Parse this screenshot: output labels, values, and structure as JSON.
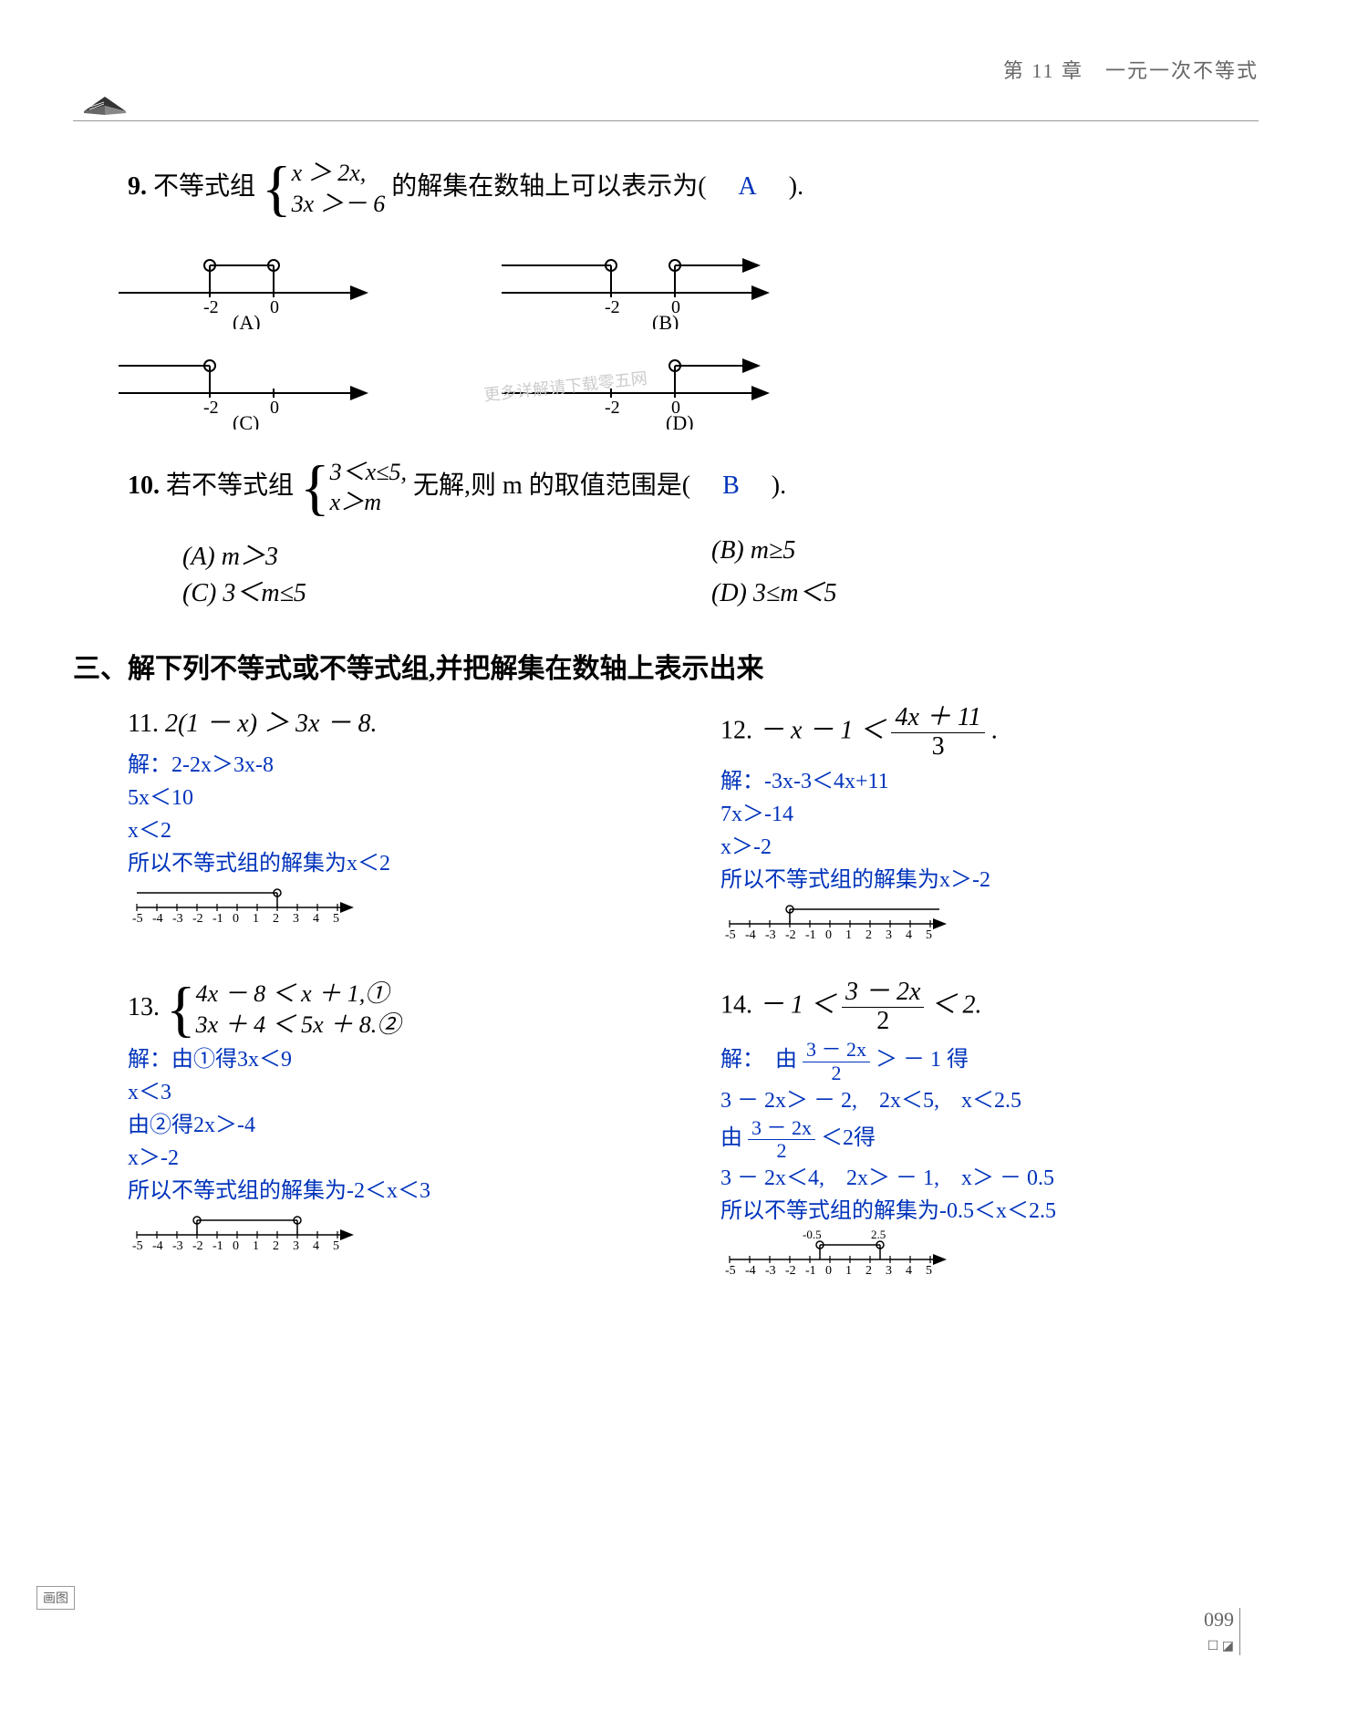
{
  "header": {
    "chapter": "第 11 章　一元一次不等式"
  },
  "q9": {
    "num": "9.",
    "lead": "不等式组",
    "br1": "x ＞ 2x,",
    "br2": "3x ＞－ 6",
    "tail": "的解集在数轴上可以表示为(　",
    "ans": "A",
    "tail2": "　).",
    "labels": {
      "a": "(A)",
      "b": "(B)",
      "c": "(C)",
      "d": "(D)"
    },
    "ticks": {
      "n2": "-2",
      "z": "0"
    }
  },
  "q10": {
    "num": "10.",
    "lead": "若不等式组",
    "br1": "3＜x≤5,",
    "br2": "x＞m",
    "tail": "无解,则 m 的取值范围是(　",
    "ans": "B",
    "tail2": "　).",
    "optA": "(A)  m＞3",
    "optB": "(B)  m≥5",
    "optC": "(C)  3＜m≤5",
    "optD": "(D)  3≤m＜5"
  },
  "section3": "三、解下列不等式或不等式组,并把解集在数轴上表示出来",
  "q11": {
    "num": "11.",
    "question": "2(1 － x) ＞ 3x － 8.",
    "s1": "解：2-2x＞3x-8",
    "s2": "5x＜10",
    "s3": "x＜2",
    "s4": "所以不等式组的解集为x＜2"
  },
  "q12": {
    "num": "12.",
    "q_head": "－ x － 1 ＜",
    "frac_n": "4x ＋ 11",
    "frac_d": "3",
    "q_tail": ".",
    "s1": "解：-3x-3＜4x+11",
    "s2": "7x＞-14",
    "s3": "x＞-2",
    "s4": "所以不等式组的解集为x＞-2"
  },
  "q13": {
    "num": "13.",
    "br1": "4x － 8 ＜ x ＋ 1,①",
    "br2": "3x ＋ 4 ＜ 5x ＋ 8.②",
    "s1": "解：由①得3x＜9",
    "s2": "x＜3",
    "s3": "由②得2x＞-4",
    "s4": "x＞-2",
    "s5": "所以不等式组的解集为-2＜x＜3"
  },
  "q14": {
    "num": "14.",
    "q_head": "－ 1 ＜",
    "frac_n": "3 － 2x",
    "frac_d": "2",
    "q_tail": "＜ 2.",
    "s1": "解：　由",
    "f1n": "3 － 2x",
    "f1d": "2",
    "s1b": "＞ － 1 得",
    "s2": "3 － 2x＞ － 2,　2x＜5,　x＜2.5",
    "s3": "由",
    "f2n": "3 － 2x",
    "f2d": "2",
    "s3b": "＜2得",
    "s4": "3 － 2x＜4,　2x＞ － 1,　x＞ － 0.5",
    "s5": "所以不等式组的解集为-0.5＜x＜2.5"
  },
  "numberline": {
    "ticks": [
      "-5",
      "-4",
      "-3",
      "-2",
      "-1",
      "0",
      "1",
      "2",
      "3",
      "4",
      "5"
    ],
    "axis_color": "#000",
    "fill_color": "none",
    "stroke_w": 1.4,
    "label_fontsize": 14
  },
  "pagenum": "099",
  "cornerlabel": "画图",
  "colors": {
    "answer": "#0033bb",
    "text": "#000",
    "muted": "#888"
  }
}
